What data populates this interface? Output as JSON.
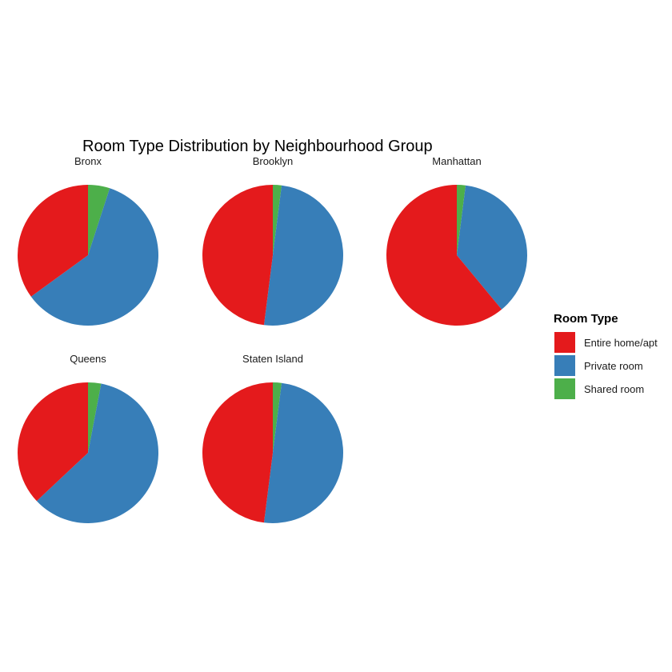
{
  "chart_data": {
    "type": "pie",
    "title": "Room Type Distribution by Neighbourhood Group",
    "legend": {
      "title": "Room Type",
      "position": "right",
      "entries": [
        {
          "label": "Entire home/apt",
          "color": "#E41A1C"
        },
        {
          "label": "Private room",
          "color": "#377EB8"
        },
        {
          "label": "Shared room",
          "color": "#4DAF4A"
        }
      ]
    },
    "series_order": [
      "Shared room",
      "Private room",
      "Entire home/apt"
    ],
    "facets": [
      {
        "name": "Bronx",
        "values": {
          "Entire home/apt": 0.35,
          "Private room": 0.6,
          "Shared room": 0.05
        }
      },
      {
        "name": "Brooklyn",
        "values": {
          "Entire home/apt": 0.48,
          "Private room": 0.5,
          "Shared room": 0.02
        }
      },
      {
        "name": "Manhattan",
        "values": {
          "Entire home/apt": 0.61,
          "Private room": 0.37,
          "Shared room": 0.02
        }
      },
      {
        "name": "Queens",
        "values": {
          "Entire home/apt": 0.37,
          "Private room": 0.6,
          "Shared room": 0.03
        }
      },
      {
        "name": "Staten Island",
        "values": {
          "Entire home/apt": 0.48,
          "Private room": 0.5,
          "Shared room": 0.02
        }
      }
    ]
  }
}
